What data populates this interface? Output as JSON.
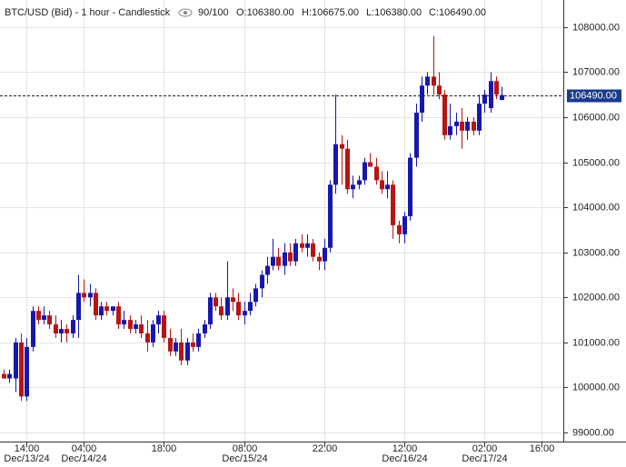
{
  "chart_data": {
    "type": "candlestick",
    "title": "BTC/USD (Bid) - 1 hour - Candlestick",
    "bar_count": "90/100",
    "ohlc_labels": [
      "O:106380.00",
      "H:106675.00",
      "L:106380.00",
      "C:106490.00"
    ],
    "categories": [
      null,
      null,
      null,
      null,
      "14:00",
      null,
      null,
      null,
      null,
      null,
      null,
      null,
      null,
      null,
      "04:00",
      null,
      null,
      null,
      null,
      null,
      null,
      null,
      null,
      null,
      null,
      null,
      null,
      null,
      "18:00",
      null,
      null,
      null,
      null,
      null,
      null,
      null,
      null,
      null,
      null,
      null,
      null,
      null,
      "08:00",
      null,
      null,
      null,
      null,
      null,
      null,
      null,
      null,
      null,
      null,
      null,
      null,
      null,
      "22:00",
      null,
      null,
      null,
      null,
      null,
      null,
      null,
      null,
      null,
      null,
      null,
      null,
      null,
      "12:00",
      null,
      null,
      null,
      null,
      null,
      null,
      null,
      null,
      null,
      null,
      null,
      null,
      null,
      "02:00",
      null,
      null,
      null,
      null,
      null,
      null,
      null,
      null,
      null,
      "16:00"
    ],
    "category_dates": [
      null,
      null,
      null,
      null,
      "Dec/13/24",
      null,
      null,
      null,
      null,
      null,
      null,
      null,
      null,
      null,
      "Dec/14/24",
      null,
      null,
      null,
      null,
      null,
      null,
      null,
      null,
      null,
      null,
      null,
      null,
      null,
      null,
      null,
      null,
      null,
      null,
      null,
      null,
      null,
      null,
      null,
      null,
      null,
      null,
      null,
      "Dec/15/24",
      null,
      null,
      null,
      null,
      null,
      null,
      null,
      null,
      null,
      null,
      null,
      null,
      null,
      null,
      null,
      null,
      null,
      null,
      null,
      null,
      null,
      null,
      null,
      null,
      null,
      null,
      null,
      "Dec/16/24",
      null,
      null,
      null,
      null,
      null,
      null,
      null,
      null,
      null,
      null,
      null,
      null,
      null,
      "Dec/17/24",
      null,
      null,
      null,
      null,
      null,
      null,
      null,
      null,
      null,
      null
    ],
    "open": [
      100300,
      100200,
      100200,
      101000,
      99800,
      100900,
      101700,
      101500,
      101600,
      101400,
      101200,
      101300,
      101200,
      101500,
      102100,
      102000,
      102100,
      101600,
      101800,
      101700,
      101800,
      101400,
      101500,
      101300,
      101400,
      101200,
      101000,
      101400,
      101600,
      101100,
      100800,
      101000,
      100600,
      101000,
      100900,
      101200,
      101400,
      102000,
      101800,
      101600,
      102000,
      101900,
      101600,
      101700,
      101900,
      102200,
      102500,
      102700,
      102900,
      102700,
      103000,
      102800,
      103200,
      103100,
      103200,
      102900,
      102800,
      103100,
      104500,
      105400,
      105300,
      104400,
      104500,
      104600,
      105000,
      104900,
      104600,
      104400,
      104500,
      103600,
      103400,
      103800,
      105100,
      106100,
      106700,
      106900,
      106700,
      106500,
      105600,
      105800,
      105900,
      105700,
      105900,
      105700,
      106300,
      106200,
      106800,
      106380,
      null,
      null,
      null,
      null,
      null,
      null,
      null
    ],
    "high": [
      100400,
      100400,
      101100,
      101200,
      101100,
      101800,
      101800,
      101800,
      101700,
      101600,
      101500,
      101400,
      101600,
      102500,
      102400,
      102300,
      102200,
      101900,
      101900,
      101800,
      101900,
      101700,
      101600,
      101500,
      101600,
      101500,
      101500,
      101700,
      101700,
      101300,
      101100,
      101300,
      101100,
      101200,
      101300,
      101500,
      102100,
      102100,
      102000,
      102800,
      102200,
      102100,
      101900,
      102100,
      102300,
      102600,
      102900,
      103300,
      103100,
      103200,
      103200,
      103300,
      103400,
      103400,
      103300,
      103000,
      103300,
      104600,
      106500,
      105600,
      105500,
      104700,
      104700,
      105100,
      105200,
      105100,
      104800,
      104800,
      104600,
      103700,
      103900,
      105200,
      106300,
      106900,
      107000,
      107800,
      107000,
      106600,
      106300,
      106100,
      106200,
      106000,
      106000,
      106500,
      106600,
      107000,
      106900,
      106675,
      null,
      null,
      null,
      null,
      null,
      null,
      null
    ],
    "low": [
      100200,
      100100,
      99900,
      99700,
      99700,
      100800,
      101400,
      101400,
      101300,
      101100,
      101000,
      101000,
      101100,
      101100,
      101900,
      101800,
      101500,
      101500,
      101600,
      101600,
      101300,
      101300,
      101200,
      101200,
      101100,
      100800,
      100900,
      101200,
      101000,
      100700,
      100700,
      100500,
      100500,
      100800,
      100800,
      101100,
      101300,
      101700,
      101500,
      101500,
      101700,
      101500,
      101400,
      101600,
      101800,
      102000,
      102300,
      102600,
      102600,
      102500,
      102700,
      102700,
      103000,
      102900,
      102800,
      102600,
      102600,
      103000,
      104300,
      104500,
      104300,
      104200,
      104400,
      104500,
      104900,
      104500,
      104300,
      104200,
      103300,
      103200,
      103200,
      103700,
      104900,
      105900,
      106500,
      106500,
      106400,
      105500,
      105500,
      105600,
      105300,
      105500,
      105600,
      105600,
      106100,
      106100,
      106400,
      106380,
      null,
      null,
      null,
      null,
      null,
      null,
      null
    ],
    "close": [
      100200,
      100300,
      101000,
      99800,
      100900,
      101700,
      101500,
      101600,
      101400,
      101200,
      101300,
      101200,
      101500,
      102100,
      102000,
      102100,
      101600,
      101800,
      101700,
      101800,
      101400,
      101500,
      101300,
      101400,
      101200,
      101000,
      101400,
      101600,
      101100,
      100800,
      101000,
      100600,
      101000,
      100900,
      101200,
      101400,
      102000,
      101800,
      101600,
      102000,
      101900,
      101600,
      101700,
      101900,
      102200,
      102500,
      102700,
      102900,
      102700,
      103000,
      102800,
      103200,
      103100,
      103200,
      102900,
      102800,
      103100,
      104500,
      105400,
      105300,
      104400,
      104500,
      104600,
      105000,
      104900,
      104600,
      104400,
      104500,
      103600,
      103400,
      103800,
      105100,
      106100,
      106700,
      106900,
      106700,
      106500,
      105600,
      105800,
      105900,
      105700,
      105900,
      105700,
      106300,
      106500,
      106800,
      106500,
      106490,
      null,
      null,
      null,
      null,
      null,
      null,
      null
    ],
    "up_color": "#1717b0",
    "down_color": "#b81414",
    "current_price": {
      "value": 106490,
      "label": "106490.00"
    },
    "ylim": [
      98800,
      108600
    ],
    "yticks": [
      {
        "value": 99000,
        "label": "99000.00"
      },
      {
        "value": 100000,
        "label": "100000.00"
      },
      {
        "value": 101000,
        "label": "101000.00"
      },
      {
        "value": 102000,
        "label": "102000.00"
      },
      {
        "value": 103000,
        "label": "103000.00"
      },
      {
        "value": 104000,
        "label": "104000.00"
      },
      {
        "value": 105000,
        "label": "105000.00"
      },
      {
        "value": 106000,
        "label": "106000.00"
      },
      {
        "value": 107000,
        "label": "107000.00"
      },
      {
        "value": 108000,
        "label": "108000.00"
      }
    ],
    "grid": true
  }
}
